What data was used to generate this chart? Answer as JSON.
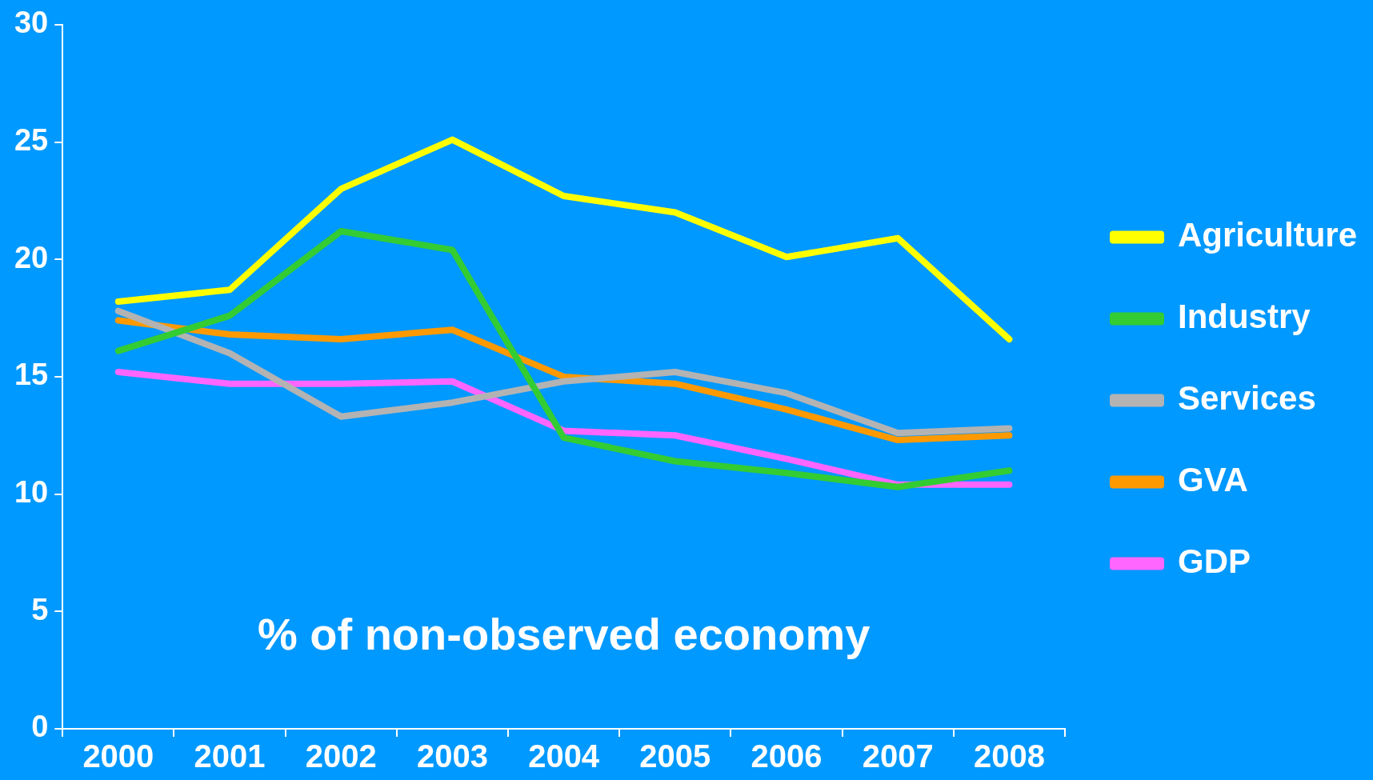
{
  "chart_data": {
    "type": "line",
    "categories": [
      "2000",
      "2001",
      "2002",
      "2003",
      "2004",
      "2005",
      "2006",
      "2007",
      "2008"
    ],
    "series": [
      {
        "name": "Agriculture",
        "color": "#ffff00",
        "values": [
          18.2,
          18.7,
          23.0,
          25.1,
          22.7,
          22.0,
          20.1,
          20.9,
          16.6
        ]
      },
      {
        "name": "Industry",
        "color": "#33cc33",
        "values": [
          16.1,
          17.6,
          21.2,
          20.4,
          12.4,
          11.4,
          10.9,
          10.3,
          11.0
        ]
      },
      {
        "name": "Services",
        "color": "#b3b3b3",
        "values": [
          17.8,
          16.0,
          13.3,
          13.9,
          14.8,
          15.2,
          14.3,
          12.6,
          12.8
        ]
      },
      {
        "name": "GVA",
        "color": "#ff9900",
        "values": [
          17.4,
          16.8,
          16.6,
          17.0,
          15.0,
          14.7,
          13.6,
          12.3,
          12.5
        ]
      },
      {
        "name": "GDP",
        "color": "#ff66ff",
        "values": [
          15.2,
          14.7,
          14.7,
          14.8,
          12.7,
          12.5,
          11.5,
          10.4,
          10.4
        ]
      }
    ],
    "ylim": [
      0,
      30
    ],
    "yticks": [
      0,
      5,
      10,
      15,
      20,
      25,
      30
    ],
    "grid": false,
    "legend": "right",
    "marker": "none",
    "line_style": "solid",
    "annotations": [
      "% of non-observed economy"
    ]
  }
}
